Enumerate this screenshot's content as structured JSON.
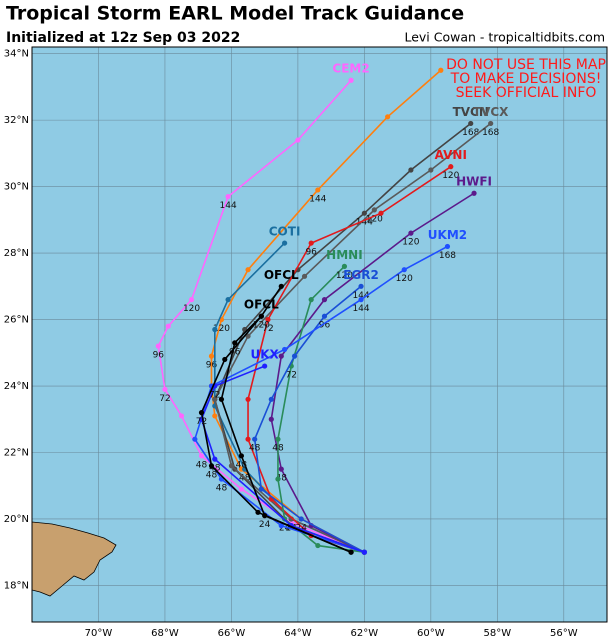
{
  "chart_data": {
    "type": "line",
    "title": "Tropical Storm EARL Model Track Guidance",
    "subtitle": "Initialized at 12z Sep 03 2022",
    "credit": "Levi Cowan - tropicaltidbits.com",
    "annotation": [
      "DO NOT USE THIS MAP",
      "TO MAKE DECISIONS!",
      "SEEK OFFICIAL INFO"
    ],
    "xlim": [
      -72,
      -54.7
    ],
    "ylim": [
      16.9,
      34.2
    ],
    "xticks": [
      {
        "value": -70,
        "label": "70°W"
      },
      {
        "value": -68,
        "label": "68°W"
      },
      {
        "value": -66,
        "label": "66°W"
      },
      {
        "value": -64,
        "label": "64°W"
      },
      {
        "value": -62,
        "label": "62°W"
      },
      {
        "value": -60,
        "label": "60°W"
      },
      {
        "value": -58,
        "label": "58°W"
      },
      {
        "value": -56,
        "label": "56°W"
      }
    ],
    "yticks": [
      {
        "value": 18,
        "label": "18°N"
      },
      {
        "value": 20,
        "label": "20°N"
      },
      {
        "value": 22,
        "label": "22°N"
      },
      {
        "value": 24,
        "label": "24°N"
      },
      {
        "value": 26,
        "label": "26°N"
      },
      {
        "value": 28,
        "label": "28°N"
      },
      {
        "value": 30,
        "label": "30°N"
      },
      {
        "value": 32,
        "label": "32°N"
      },
      {
        "value": 34,
        "label": "34°N"
      }
    ],
    "grid": true,
    "series": [
      {
        "name": "CEM2",
        "color": "#ff66ff",
        "lon": [
          -62.0,
          -64.2,
          -65.7,
          -66.9,
          -67.5,
          -68.0,
          -68.2,
          -67.9,
          -67.2,
          -66.1,
          -64.0,
          -62.4
        ],
        "lat": [
          19.0,
          19.9,
          20.9,
          21.9,
          23.1,
          23.9,
          25.2,
          25.8,
          26.6,
          29.7,
          31.4,
          33.2
        ],
        "hours": [
          null,
          null,
          null,
          48,
          null,
          72,
          96,
          null,
          120,
          144,
          null,
          null
        ]
      },
      {
        "color": "#ff7f0e",
        "lon": [
          -62.0,
          -63.9,
          -65.7,
          -66.5,
          -66.6,
          -66.6,
          -66.3,
          -65.5,
          -63.4,
          -61.3,
          -59.7
        ],
        "lat": [
          19.0,
          20.0,
          21.5,
          23.1,
          24.0,
          24.9,
          26.0,
          27.5,
          29.9,
          32.1,
          33.5
        ],
        "hours": [
          null,
          null,
          null,
          null,
          null,
          96,
          120,
          null,
          144,
          null,
          null
        ]
      },
      {
        "name": "COTI",
        "color": "#1a6fa0",
        "lon": [
          -62.0,
          -64.2,
          -65.6,
          -66.5,
          -66.5,
          -66.1,
          -64.4
        ],
        "lat": [
          19.0,
          20.0,
          21.5,
          23.4,
          25.7,
          26.6,
          28.3
        ],
        "hours": [
          null,
          24,
          48,
          null,
          null,
          null,
          null
        ]
      },
      {
        "name": "TVCN",
        "color": "#444444",
        "lon": [
          -62.0,
          -64.2,
          -65.9,
          -66.5,
          -65.6,
          -64.0,
          -62.0,
          -60.6,
          -58.8
        ],
        "lat": [
          19.0,
          19.8,
          21.5,
          23.6,
          25.7,
          27.5,
          29.2,
          30.5,
          31.9
        ],
        "hours": [
          null,
          null,
          null,
          null,
          null,
          null,
          144,
          null,
          168
        ]
      },
      {
        "name": "TVCX",
        "color": "#5a5a5a",
        "lon": [
          -62.0,
          -64.2,
          -66.0,
          -66.5,
          -65.5,
          -63.8,
          -61.7,
          -60.0,
          -58.2
        ],
        "lat": [
          19.0,
          20.0,
          21.6,
          23.6,
          25.5,
          27.3,
          29.3,
          30.5,
          31.9
        ],
        "hours": [
          null,
          null,
          null,
          null,
          null,
          null,
          120,
          null,
          168
        ]
      },
      {
        "name": "AVNI",
        "color": "#e31a1c",
        "lon": [
          -62.0,
          -63.6,
          -64.8,
          -65.5,
          -65.5,
          -64.9,
          -63.6,
          -61.5,
          -59.4
        ],
        "lat": [
          19.0,
          19.5,
          20.6,
          22.4,
          23.6,
          26.0,
          28.3,
          29.2,
          30.6
        ],
        "hours": [
          null,
          null,
          null,
          null,
          null,
          72,
          96,
          null,
          120
        ]
      },
      {
        "name": "HWFI",
        "color": "#5c1a8b",
        "lon": [
          -62.0,
          -63.6,
          -64.5,
          -64.8,
          -64.5,
          -63.2,
          -60.6,
          -58.7
        ],
        "lat": [
          19.0,
          19.8,
          21.5,
          23.0,
          24.9,
          26.6,
          28.6,
          29.8
        ],
        "hours": [
          null,
          null,
          48,
          null,
          null,
          null,
          120,
          null
        ]
      },
      {
        "name": "HMNI",
        "color": "#2a8c5a",
        "lon": [
          -62.0,
          -63.4,
          -64.4,
          -64.6,
          -64.6,
          -64.2,
          -63.6,
          -62.6
        ],
        "lat": [
          19.0,
          19.2,
          20.0,
          21.2,
          22.4,
          24.6,
          26.6,
          27.6
        ],
        "hours": [
          null,
          null,
          24,
          null,
          48,
          72,
          null,
          120
        ]
      },
      {
        "name": "EGR2",
        "color": "#1a4fd6",
        "lon": [
          -62.0,
          -63.9,
          -65.1,
          -65.3,
          -64.8,
          -64.1,
          -63.2,
          -62.1
        ],
        "lat": [
          19.0,
          20.0,
          20.9,
          22.4,
          23.6,
          24.9,
          26.1,
          27.0
        ],
        "hours": [
          null,
          24,
          null,
          48,
          null,
          null,
          96,
          144
        ]
      },
      {
        "name": "UKM2",
        "color": "#1f4fff",
        "lon": [
          -62.0,
          -64.5,
          -66.3,
          -67.1,
          -66.6,
          -64.4,
          -62.1,
          -60.8,
          -59.5
        ],
        "lat": [
          19.0,
          19.8,
          21.2,
          22.4,
          24.0,
          25.1,
          26.6,
          27.5,
          28.2
        ],
        "hours": [
          null,
          null,
          48,
          null,
          null,
          null,
          144,
          120,
          168
        ]
      },
      {
        "name": "UKX",
        "color": "#2020ff",
        "lon": [
          -62.0,
          -64.2,
          -66.5,
          -66.9,
          -66.5,
          -65.0
        ],
        "lat": [
          19.0,
          19.8,
          21.8,
          23.0,
          24.0,
          24.6
        ],
        "hours": [
          null,
          null,
          48,
          null,
          72,
          null
        ]
      },
      {
        "name": "OFCL",
        "color": "#000000",
        "lon": [
          -62.4,
          -65.0,
          -65.7,
          -66.3,
          -65.9,
          -65.1,
          -64.5
        ],
        "lat": [
          19.0,
          20.1,
          21.9,
          23.6,
          25.3,
          26.1,
          27.0
        ],
        "hours": [
          null,
          24,
          48,
          null,
          96,
          120,
          null
        ]
      },
      {
        "name": "OFCL",
        "color": "#000000",
        "lon": [
          -62.4,
          -65.2,
          -66.6,
          -66.9,
          -66.2,
          -65.1
        ],
        "lat": [
          19.0,
          20.2,
          21.6,
          23.2,
          24.8,
          26.1
        ],
        "hours": [
          null,
          null,
          48,
          72,
          null,
          null
        ]
      }
    ]
  }
}
